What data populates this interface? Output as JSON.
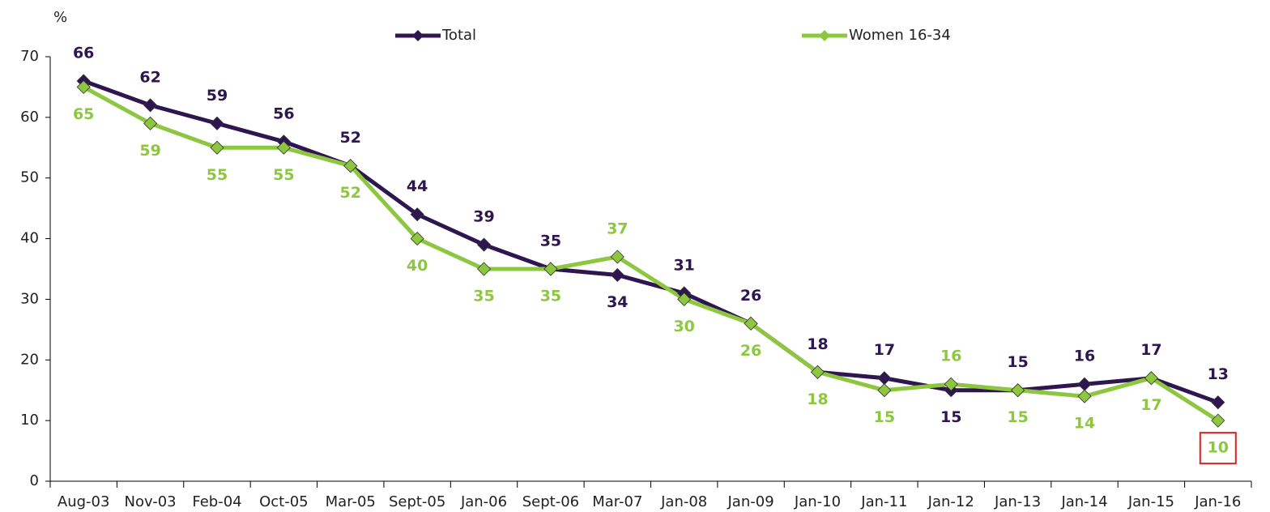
{
  "chart_data": {
    "type": "line",
    "y_label": "%",
    "categories": [
      "Aug-03",
      "Nov-03",
      "Feb-04",
      "Oct-05",
      "Mar-05",
      "Sept-05",
      "Jan-06",
      "Sept-06",
      "Mar-07",
      "Jan-08",
      "Jan-09",
      "Jan-10",
      "Jan-11",
      "Jan-12",
      "Jan-13",
      "Jan-14",
      "Jan-15",
      "Jan-16"
    ],
    "series": [
      {
        "name": "Total",
        "color": "#2e1650",
        "values": [
          66,
          62,
          59,
          56,
          52,
          44,
          39,
          35,
          34,
          31,
          26,
          18,
          17,
          15,
          15,
          16,
          17,
          13
        ]
      },
      {
        "name": "Women 16-34",
        "color": "#8dc63f",
        "values": [
          65,
          59,
          55,
          55,
          52,
          40,
          35,
          35,
          37,
          30,
          26,
          18,
          15,
          16,
          15,
          14,
          17,
          10
        ]
      }
    ],
    "ylim": [
      0,
      70
    ],
    "yticks": [
      0,
      10,
      20,
      30,
      40,
      50,
      60,
      70
    ],
    "grid": false
  }
}
